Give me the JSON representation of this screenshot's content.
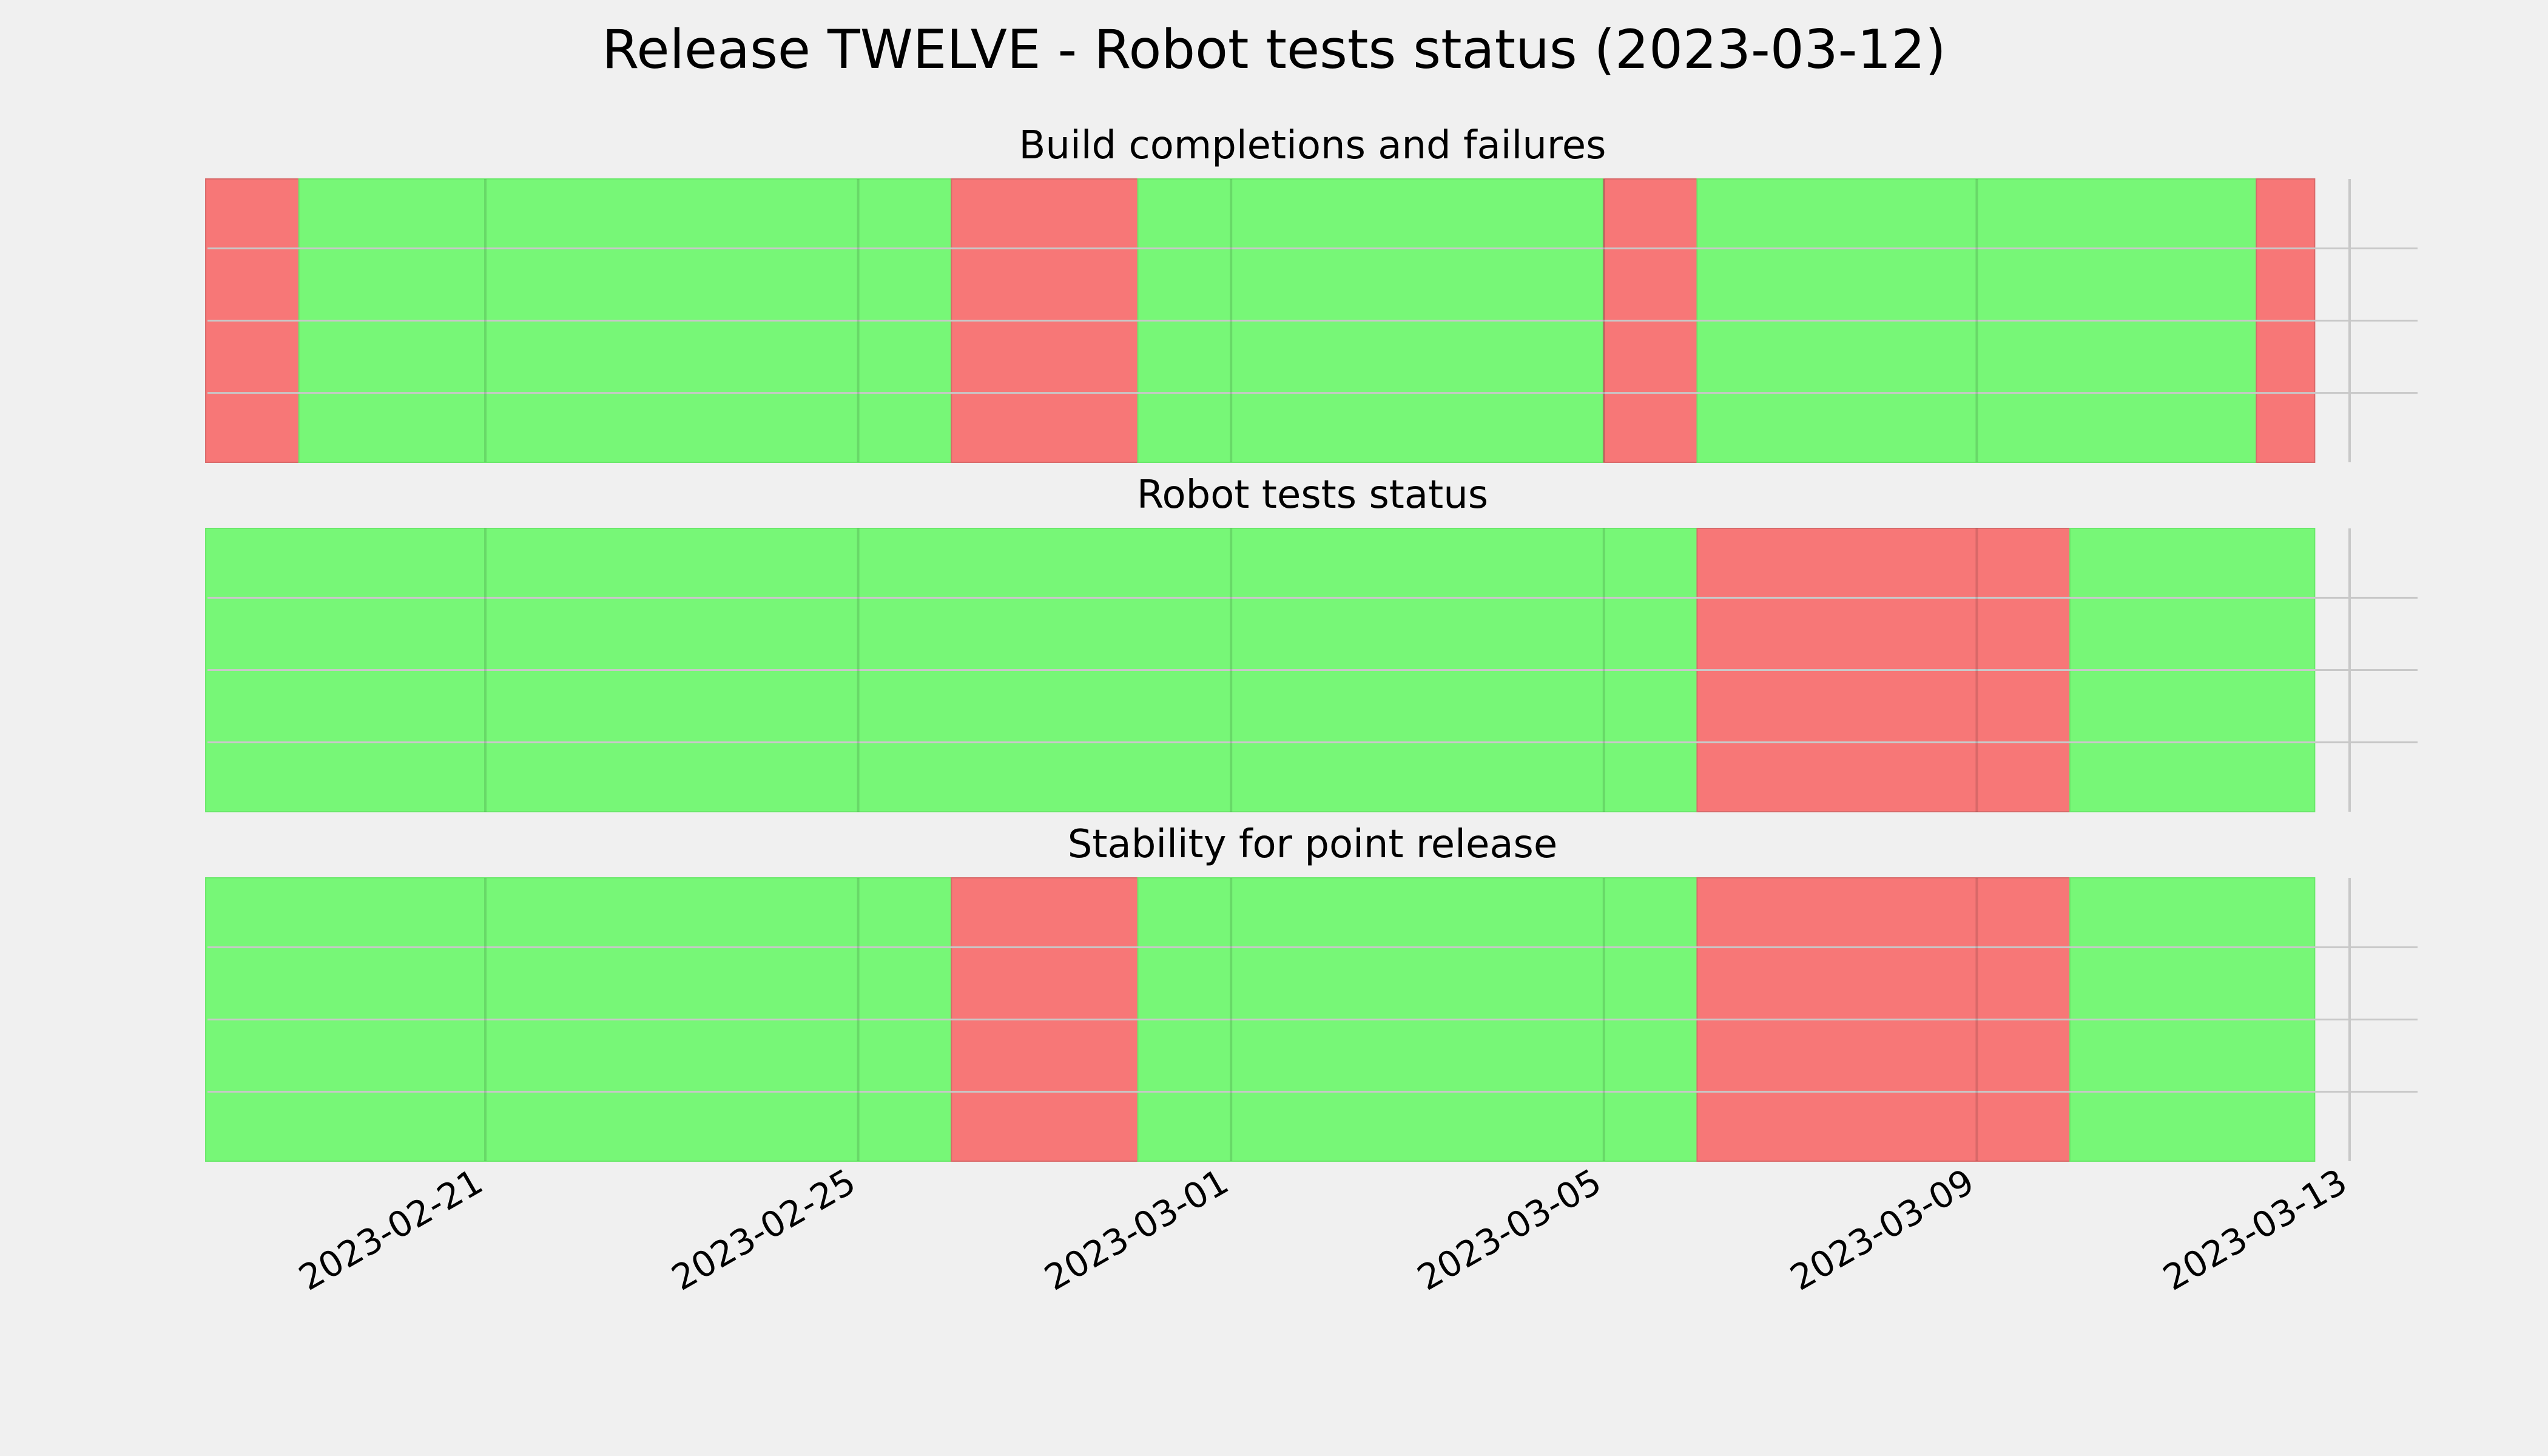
{
  "title": "Release TWELVE - Robot tests status (2023-03-12)",
  "colors": {
    "pass": "#77f777",
    "fail": "#f77777",
    "background": "#f0f0f0",
    "grid": "#c8c8c8"
  },
  "chart_data": {
    "type": "timeline-status",
    "x_axis": {
      "type": "date",
      "range": [
        "2023-02-18",
        "2023-03-13"
      ],
      "ticks": [
        "2023-02-21",
        "2023-02-25",
        "2023-03-01",
        "2023-03-05",
        "2023-03-09",
        "2023-03-13"
      ]
    },
    "grid": true,
    "legend": "none",
    "panels": [
      {
        "title": "Build completions and failures",
        "segments": [
          {
            "start": "2023-02-18",
            "end": "2023-02-19",
            "status": "fail"
          },
          {
            "start": "2023-02-19",
            "end": "2023-02-26",
            "status": "pass"
          },
          {
            "start": "2023-02-26",
            "end": "2023-02-28",
            "status": "fail"
          },
          {
            "start": "2023-02-28",
            "end": "2023-03-05",
            "status": "pass"
          },
          {
            "start": "2023-03-05",
            "end": "2023-03-06",
            "status": "fail"
          },
          {
            "start": "2023-03-06",
            "end": "2023-03-12",
            "status": "pass"
          },
          {
            "start": "2023-03-12",
            "end": "2023-03-12T15:00",
            "status": "fail"
          }
        ]
      },
      {
        "title": "Robot tests status",
        "segments": [
          {
            "start": "2023-02-18",
            "end": "2023-03-06",
            "status": "pass"
          },
          {
            "start": "2023-03-06",
            "end": "2023-03-10",
            "status": "fail"
          },
          {
            "start": "2023-03-10",
            "end": "2023-03-12T15:00",
            "status": "pass"
          }
        ]
      },
      {
        "title": "Stability for point release",
        "segments": [
          {
            "start": "2023-02-18",
            "end": "2023-02-26",
            "status": "pass"
          },
          {
            "start": "2023-02-26",
            "end": "2023-02-28",
            "status": "fail"
          },
          {
            "start": "2023-02-28",
            "end": "2023-03-06",
            "status": "pass"
          },
          {
            "start": "2023-03-06",
            "end": "2023-03-10",
            "status": "fail"
          },
          {
            "start": "2023-03-10",
            "end": "2023-03-12T15:00",
            "status": "pass"
          }
        ]
      }
    ]
  }
}
